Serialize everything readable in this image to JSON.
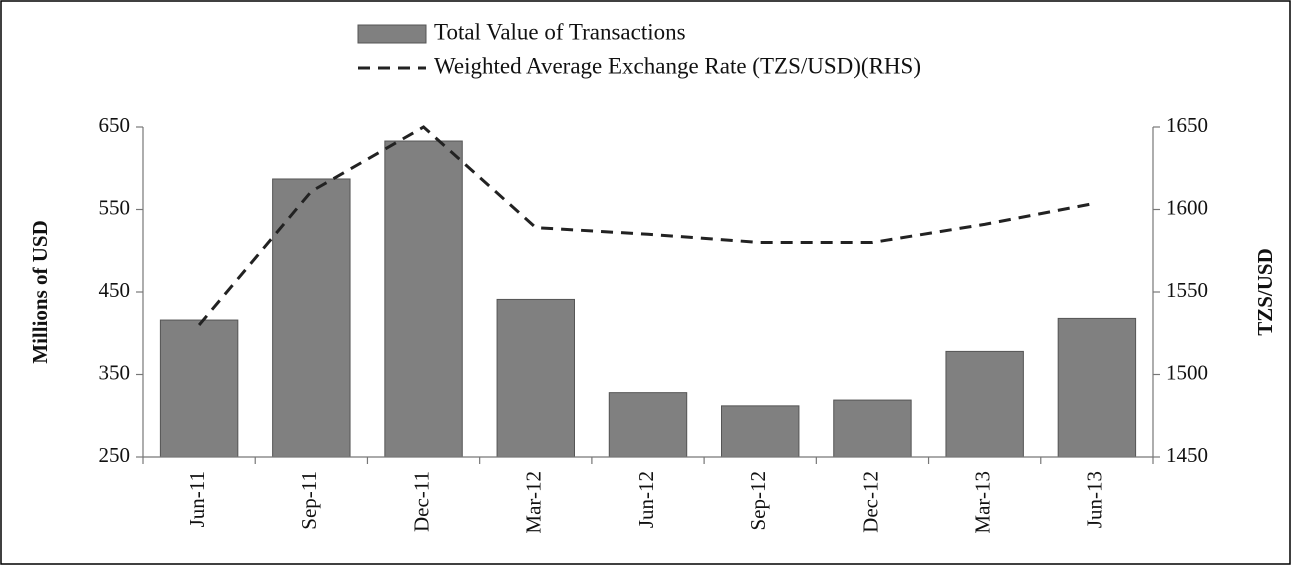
{
  "chart_data": {
    "type": "bar",
    "categories": [
      "Jun-11",
      "Sep-11",
      "Dec-11",
      "Mar-12",
      "Jun-12",
      "Sep-12",
      "Dec-12",
      "Mar-13",
      "Jun-13"
    ],
    "series": [
      {
        "name": "Total Value of Transactions",
        "type": "bar",
        "color": "#808080",
        "values": [
          416,
          587,
          633,
          441,
          328,
          312,
          319,
          378,
          418
        ]
      },
      {
        "name": "Weighted Average Exchange Rate (TZS/USD)(RHS)",
        "type": "line",
        "axis": "y2",
        "color": "#222222",
        "values": [
          1530,
          1611,
          1650,
          1589,
          1585,
          1580,
          1580,
          1591,
          1604
        ]
      }
    ],
    "ylabel": "Millions of  USD",
    "y2label": "TZS/USD",
    "ylim": [
      250,
      650
    ],
    "yticks": [
      250,
      350,
      450,
      550,
      650
    ],
    "y2lim": [
      1450,
      1650
    ],
    "y2ticks": [
      1450,
      1500,
      1550,
      1600,
      1650
    ],
    "legend": "top"
  }
}
